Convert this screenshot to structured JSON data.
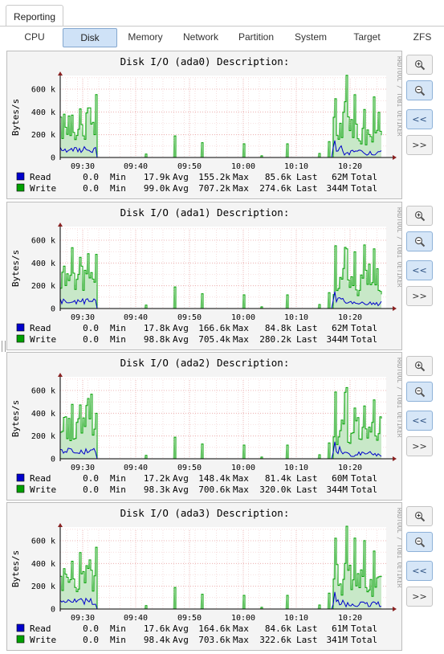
{
  "tabs": {
    "top_label": "Reporting"
  },
  "subnav": {
    "items": [
      {
        "label": "CPU"
      },
      {
        "label": "Disk"
      },
      {
        "label": "Memory"
      },
      {
        "label": "Network"
      },
      {
        "label": "Partition"
      },
      {
        "label": "System"
      },
      {
        "label": "Target"
      },
      {
        "label": "ZFS"
      }
    ],
    "active": "Disk"
  },
  "controls": {
    "zoom_in_icon": "magnifier-plus-icon",
    "zoom_out_icon": "magnifier-minus-icon",
    "back_label": "<<",
    "forward_label": ">>"
  },
  "watermark": "RRDTOOL / TOBI OETIKER",
  "colors": {
    "read": "#0000cc",
    "write": "#00a000",
    "write_fill": "#c8e8c8",
    "grid": "#e8a0a0",
    "active_tab": "#cfe2f7"
  },
  "chart_data": [
    {
      "type": "area",
      "title": "Disk I/O (ada0) Description:",
      "ylabel": "Bytes/s",
      "yticks": [
        "0",
        "200 k",
        "400 k",
        "600 k"
      ],
      "xticks": [
        "09:30",
        "09:40",
        "09:50",
        "10:00",
        "10:10",
        "10:20"
      ],
      "legend": [
        {
          "name": "Read",
          "cur": "0.0",
          "min_label": "Min",
          "avg": "17.9k",
          "avg_label": "Avg",
          "max": "155.2k",
          "max_label": "Max",
          "last": "85.6k",
          "last_label": "Last",
          "total": "62M",
          "total_label": "Total"
        },
        {
          "name": "Write",
          "cur": "0.0",
          "min_label": "Min",
          "avg": "99.0k",
          "avg_label": "Avg",
          "max": "707.2k",
          "max_label": "Max",
          "last": "274.6k",
          "last_label": "Last",
          "total": "344M",
          "total_label": "Total"
        }
      ]
    },
    {
      "type": "area",
      "title": "Disk I/O (ada1) Description:",
      "ylabel": "Bytes/s",
      "yticks": [
        "0",
        "200 k",
        "400 k",
        "600 k"
      ],
      "xticks": [
        "09:30",
        "09:40",
        "09:50",
        "10:00",
        "10:10",
        "10:20"
      ],
      "legend": [
        {
          "name": "Read",
          "cur": "0.0",
          "min_label": "Min",
          "avg": "17.8k",
          "avg_label": "Avg",
          "max": "166.6k",
          "max_label": "Max",
          "last": "84.8k",
          "last_label": "Last",
          "total": "62M",
          "total_label": "Total"
        },
        {
          "name": "Write",
          "cur": "0.0",
          "min_label": "Min",
          "avg": "98.8k",
          "avg_label": "Avg",
          "max": "705.4k",
          "max_label": "Max",
          "last": "280.2k",
          "last_label": "Last",
          "total": "344M",
          "total_label": "Total"
        }
      ]
    },
    {
      "type": "area",
      "title": "Disk I/O (ada2) Description:",
      "ylabel": "Bytes/s",
      "yticks": [
        "0",
        "200 k",
        "400 k",
        "600 k"
      ],
      "xticks": [
        "09:30",
        "09:40",
        "09:50",
        "10:00",
        "10:10",
        "10:20"
      ],
      "legend": [
        {
          "name": "Read",
          "cur": "0.0",
          "min_label": "Min",
          "avg": "17.2k",
          "avg_label": "Avg",
          "max": "148.4k",
          "max_label": "Max",
          "last": "81.4k",
          "last_label": "Last",
          "total": "60M",
          "total_label": "Total"
        },
        {
          "name": "Write",
          "cur": "0.0",
          "min_label": "Min",
          "avg": "98.3k",
          "avg_label": "Avg",
          "max": "700.6k",
          "max_label": "Max",
          "last": "320.0k",
          "last_label": "Last",
          "total": "344M",
          "total_label": "Total"
        }
      ]
    },
    {
      "type": "area",
      "title": "Disk I/O (ada3) Description:",
      "ylabel": "Bytes/s",
      "yticks": [
        "0",
        "200 k",
        "400 k",
        "600 k"
      ],
      "xticks": [
        "09:30",
        "09:40",
        "09:50",
        "10:00",
        "10:10",
        "10:20"
      ],
      "legend": [
        {
          "name": "Read",
          "cur": "0.0",
          "min_label": "Min",
          "avg": "17.6k",
          "avg_label": "Avg",
          "max": "164.6k",
          "max_label": "Max",
          "last": "84.6k",
          "last_label": "Last",
          "total": "61M",
          "total_label": "Total"
        },
        {
          "name": "Write",
          "cur": "0.0",
          "min_label": "Min",
          "avg": "98.4k",
          "avg_label": "Avg",
          "max": "703.6k",
          "max_label": "Max",
          "last": "322.6k",
          "last_label": "Last",
          "total": "341M",
          "total_label": "Total"
        }
      ]
    }
  ]
}
